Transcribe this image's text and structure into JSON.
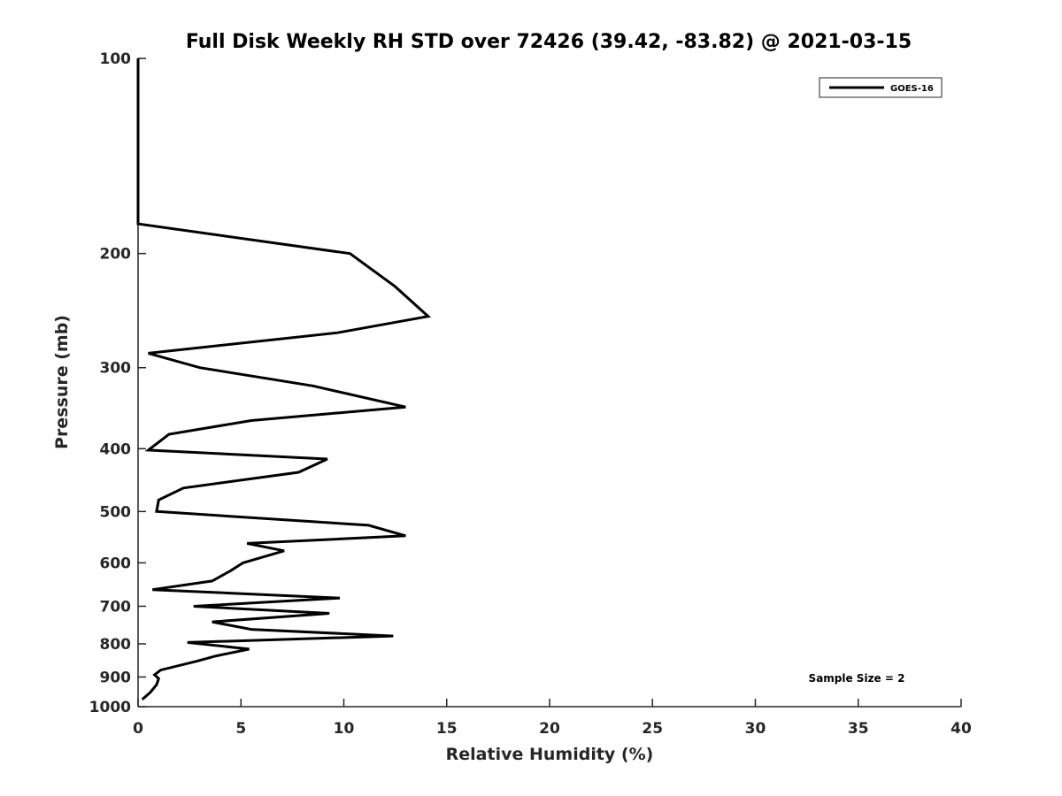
{
  "chart_data": {
    "type": "line",
    "title": "Full Disk Weekly RH STD over 72426 (39.42, -83.82) @ 2021-03-15",
    "xlabel": "Relative Humidity (%)",
    "ylabel": "Pressure (mb)",
    "xlim": [
      0,
      40
    ],
    "ylim": [
      100,
      1000
    ],
    "yscale": "log",
    "y_reversed": true,
    "xticks": [
      0,
      5,
      10,
      15,
      20,
      25,
      30,
      35,
      40
    ],
    "yticks": [
      100,
      200,
      300,
      400,
      500,
      600,
      700,
      800,
      900,
      1000
    ],
    "grid": false,
    "legend_position": "top-right",
    "annotation": "Sample Size = 2",
    "series": [
      {
        "name": "GOES-16",
        "color": "#000000",
        "points": [
          [
            0,
            100
          ],
          [
            0,
            180
          ],
          [
            10.3,
            200
          ],
          [
            12.5,
            225
          ],
          [
            14.1,
            250
          ],
          [
            9.7,
            265
          ],
          [
            0.5,
            285
          ],
          [
            3.0,
            300
          ],
          [
            8.5,
            320
          ],
          [
            13.0,
            345
          ],
          [
            5.5,
            362
          ],
          [
            1.5,
            380
          ],
          [
            0.5,
            402
          ],
          [
            9.2,
            415
          ],
          [
            7.8,
            435
          ],
          [
            2.2,
            460
          ],
          [
            1.0,
            480
          ],
          [
            0.9,
            500
          ],
          [
            11.2,
            525
          ],
          [
            13.0,
            545
          ],
          [
            5.3,
            560
          ],
          [
            7.1,
            575
          ],
          [
            5.1,
            600
          ],
          [
            4.5,
            617
          ],
          [
            3.6,
            640
          ],
          [
            0.7,
            660
          ],
          [
            9.8,
            680
          ],
          [
            2.7,
            700
          ],
          [
            9.3,
            718
          ],
          [
            3.6,
            740
          ],
          [
            5.5,
            760
          ],
          [
            12.4,
            778
          ],
          [
            2.4,
            796
          ],
          [
            5.4,
            815
          ],
          [
            3.8,
            835
          ],
          [
            2.9,
            850
          ],
          [
            1.1,
            878
          ],
          [
            0.8,
            893
          ],
          [
            1.0,
            905
          ],
          [
            0.9,
            925
          ],
          [
            0.6,
            950
          ],
          [
            0.2,
            975
          ]
        ]
      }
    ]
  }
}
